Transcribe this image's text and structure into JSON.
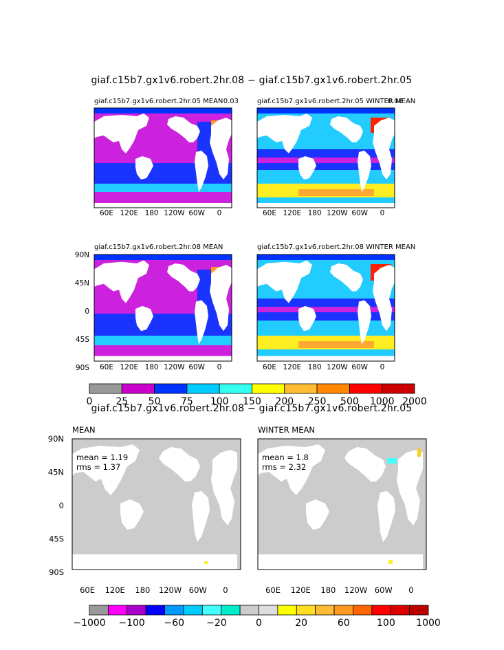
{
  "chart_data": [
    {
      "type": "map",
      "title": "giaf.c15b7.gx1v6.robert.2hr.08 − giaf.c15b7.gx1v6.robert.2hr.05",
      "panels": [
        {
          "title": "giaf.c15b7.gx1v6.robert.2hr.05 MEAN",
          "max_label": "0.03"
        },
        {
          "title": "giaf.c15b7.gx1v6.robert.2hr.05 WINTER MEAN",
          "max_label": "0.08"
        },
        {
          "title": "giaf.c15b7.gx1v6.robert.2hr.08 MEAN"
        },
        {
          "title": "giaf.c15b7.gx1v6.robert.2hr.08 WINTER MEAN"
        }
      ],
      "lon_ticks": [
        "60E",
        "120E",
        "180",
        "120W",
        "60W",
        "0"
      ],
      "lat_ticks": [
        "90N",
        "45N",
        "0",
        "45S",
        "90S"
      ],
      "colorbar": {
        "labels": [
          "0",
          "25",
          "50",
          "75",
          "100",
          "150",
          "200",
          "250",
          "500",
          "1000",
          "2000"
        ],
        "colors": [
          "#999999",
          "#cc00cc",
          "#0033ff",
          "#00ccff",
          "#33ffee",
          "#ffff00",
          "#ffbb33",
          "#ff8800",
          "#ff0000",
          "#cc0000"
        ]
      }
    },
    {
      "type": "map",
      "title": "giaf.c15b7.gx1v6.robert.2hr.08 − giaf.c15b7.gx1v6.robert.2hr.05",
      "panels": [
        {
          "title": "MEAN",
          "mean_label": "mean = 1.19",
          "rms_label": "rms = 1.37",
          "mean": 1.19,
          "rms": 1.37
        },
        {
          "title": "WINTER MEAN",
          "mean_label": "mean = 1.8",
          "rms_label": "rms = 2.32",
          "mean": 1.8,
          "rms": 2.32
        }
      ],
      "lon_ticks": [
        "60E",
        "120E",
        "180",
        "120W",
        "60W",
        "0"
      ],
      "lat_ticks": [
        "90N",
        "45N",
        "0",
        "45S",
        "90S"
      ],
      "colorbar": {
        "labels": [
          "−1000",
          "−100",
          "−60",
          "−20",
          "0",
          "20",
          "60",
          "100",
          "1000"
        ],
        "colors": [
          "#999999",
          "#ff00ff",
          "#aa00cc",
          "#0000ff",
          "#0099ff",
          "#00ccff",
          "#44ffff",
          "#00eecc",
          "#cccccc",
          "#dddddd",
          "#ffff00",
          "#ffdd22",
          "#ffbb33",
          "#ff9922",
          "#ff6600",
          "#ff0000",
          "#dd0000",
          "#bb0000"
        ]
      }
    }
  ],
  "icons": [
    "land-mask",
    "ocean-field"
  ]
}
